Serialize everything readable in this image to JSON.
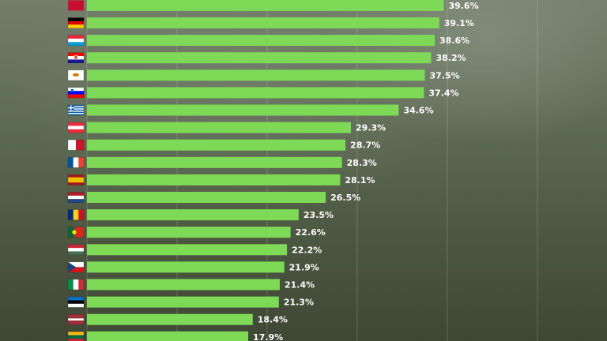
{
  "chart_data": {
    "type": "bar",
    "orientation": "horizontal",
    "unit": "%",
    "xlim": [
      0,
      70
    ],
    "grid": true,
    "bar_color": "#7ed957",
    "categories": [
      "germany",
      "luxembourg",
      "croatia",
      "cyprus",
      "slovenia",
      "greece",
      "austria",
      "malta",
      "france",
      "spain",
      "netherlands",
      "romania",
      "portugal",
      "hungary",
      "czechia",
      "italy",
      "estonia",
      "latvia",
      "lithuania"
    ],
    "values": [
      39.1,
      38.6,
      38.2,
      37.5,
      37.4,
      34.6,
      29.3,
      28.7,
      28.3,
      28.1,
      26.5,
      23.5,
      22.6,
      22.2,
      21.9,
      21.4,
      21.3,
      18.4,
      17.9
    ],
    "labels": [
      "39.1%",
      "38.6%",
      "38.2%",
      "37.5%",
      "37.4%",
      "34.6%",
      "29.3%",
      "28.7%",
      "28.3%",
      "28.1%",
      "26.5%",
      "23.5%",
      "22.6%",
      "22.2%",
      "21.9%",
      "21.4%",
      "21.3%",
      "18.4%",
      "17.9%"
    ],
    "partial_top_row": {
      "value": 39.6,
      "label": "39.6%"
    }
  }
}
